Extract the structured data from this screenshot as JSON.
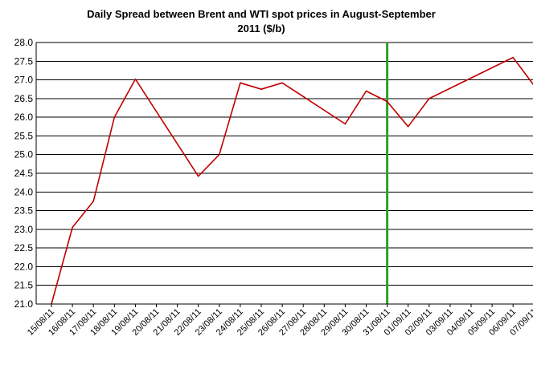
{
  "chart_data": {
    "type": "line",
    "title_lines": [
      "Daily Spread between Brent and WTI spot prices in August-September",
      "2011 ($/b)"
    ],
    "xlabel": "",
    "ylabel": "",
    "ylim": [
      21.0,
      28.0
    ],
    "ytick_labels": [
      "21.0",
      "21.5",
      "22.0",
      "22.5",
      "23.0",
      "23.5",
      "24.0",
      "24.5",
      "25.0",
      "25.5",
      "26.0",
      "26.5",
      "27.0",
      "27.5",
      "28.0"
    ],
    "x_tick_labels": [
      "15/08/11",
      "16/08/11",
      "17/08/11",
      "18/08/11",
      "19/08/11",
      "20/08/11",
      "21/08/11",
      "22/08/11",
      "23/08/11",
      "24/08/11",
      "25/08/11",
      "26/08/11",
      "27/08/11",
      "28/08/11",
      "29/08/11",
      "30/08/11",
      "31/08/11",
      "01/09/11",
      "02/09/11",
      "03/09/11",
      "04/09/11",
      "05/09/11",
      "06/09/11",
      "07/09/11"
    ],
    "grid": "horizontal",
    "legend": "none",
    "series": [
      {
        "color": "#c00000",
        "points": [
          {
            "x": "15/08/11",
            "y": 21.0
          },
          {
            "x": "16/08/11",
            "y": 23.05
          },
          {
            "x": "17/08/11",
            "y": 23.75
          },
          {
            "x": "18/08/11",
            "y": 26.0
          },
          {
            "x": "19/08/11",
            "y": 27.02
          },
          {
            "x": "22/08/11",
            "y": 24.42
          },
          {
            "x": "23/08/11",
            "y": 25.0
          },
          {
            "x": "24/08/11",
            "y": 26.92
          },
          {
            "x": "25/08/11",
            "y": 26.75
          },
          {
            "x": "26/08/11",
            "y": 26.92
          },
          {
            "x": "29/08/11",
            "y": 25.82
          },
          {
            "x": "30/08/11",
            "y": 26.7
          },
          {
            "x": "31/08/11",
            "y": 26.42
          },
          {
            "x": "01/09/11",
            "y": 25.75
          },
          {
            "x": "02/09/11",
            "y": 26.5
          },
          {
            "x": "06/09/11",
            "y": 27.6
          },
          {
            "x": "07/09/11",
            "y": 26.85
          }
        ]
      }
    ],
    "reference_line": {
      "x": "31/08/11",
      "color": "#2ca02c"
    },
    "colors": {
      "background": "#ffffff",
      "grid": "#000000",
      "axis": "#000000",
      "line": "#c00000",
      "reference": "#2ca02c"
    }
  }
}
